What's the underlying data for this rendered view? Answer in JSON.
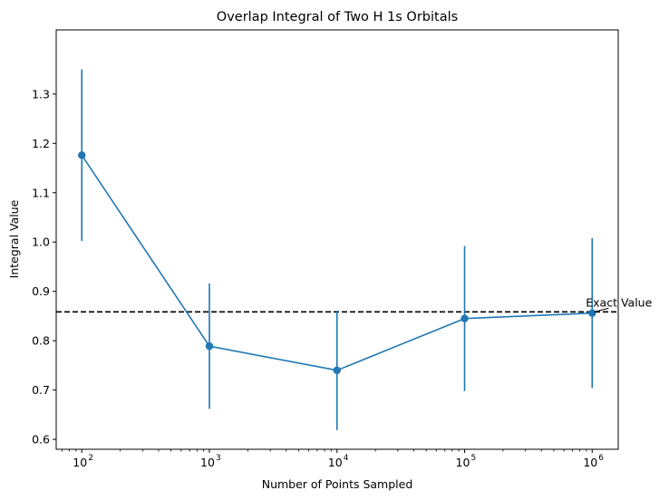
{
  "chart_data": {
    "type": "line",
    "title": "Overlap Integral of Two H 1s Orbitals",
    "xlabel": "Number of Points Sampled",
    "ylabel": "Integral Value",
    "xscale": "log",
    "xlim": [
      63,
      1600000
    ],
    "ylim": [
      0.58,
      1.43
    ],
    "grid": false,
    "x_ticks": [
      {
        "value": 100,
        "base": "10",
        "exp": "2"
      },
      {
        "value": 1000,
        "base": "10",
        "exp": "3"
      },
      {
        "value": 10000,
        "base": "10",
        "exp": "4"
      },
      {
        "value": 100000,
        "base": "10",
        "exp": "5"
      },
      {
        "value": 1000000,
        "base": "10",
        "exp": "6"
      }
    ],
    "y_ticks": [
      "0.6",
      "0.7",
      "0.8",
      "0.9",
      "1.0",
      "1.1",
      "1.2",
      "1.3"
    ],
    "series": [
      {
        "x": [
          100,
          1000,
          10000,
          100000,
          1000000
        ],
        "values": [
          1.176,
          0.789,
          0.74,
          0.845,
          0.856
        ],
        "errors": [
          0.174,
          0.127,
          0.121,
          0.147,
          0.152
        ],
        "color": "#1f77b4"
      }
    ],
    "reference_line": {
      "value": 0.8584,
      "style": "dashed",
      "color": "#000000"
    },
    "annotation": {
      "text": "Exact Value",
      "x": 1000000,
      "y": 0.8584
    }
  }
}
